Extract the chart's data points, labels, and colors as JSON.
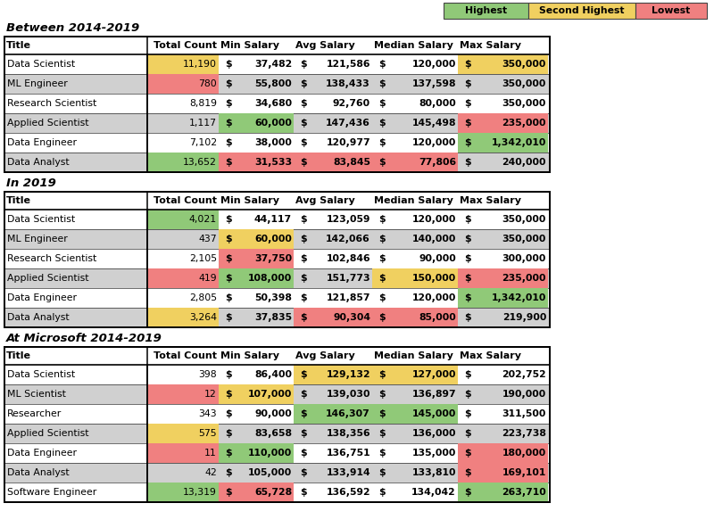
{
  "legend_colors": {
    "Highest": "#90c978",
    "Second Highest": "#f0d060",
    "Lowest": "#f08080"
  },
  "sections": [
    {
      "title": "Between 2014-2019",
      "rows": [
        {
          "title": "Data Scientist",
          "total_count": "11,190",
          "min_val": "37,482",
          "avg_val": "121,586",
          "med_val": "120,000",
          "max_val": "350,000",
          "colors": [
            "#f0d060",
            "W",
            "W",
            "W",
            "W",
            "W",
            "W",
            "#f0d060",
            "#f0d060"
          ]
        },
        {
          "title": "ML Engineer",
          "total_count": "780",
          "min_val": "55,800",
          "avg_val": "138,433",
          "med_val": "137,598",
          "max_val": "350,000",
          "colors": [
            "#f08080",
            "W",
            "W",
            "W",
            "W",
            "W",
            "W",
            "W",
            "W"
          ]
        },
        {
          "title": "Research Scientist",
          "total_count": "8,819",
          "min_val": "34,680",
          "avg_val": "92,760",
          "med_val": "80,000",
          "max_val": "350,000",
          "colors": [
            "W",
            "W",
            "W",
            "W",
            "W",
            "W",
            "W",
            "W",
            "W"
          ]
        },
        {
          "title": "Applied Scientist",
          "total_count": "1,117",
          "min_val": "60,000",
          "avg_val": "147,436",
          "med_val": "145,498",
          "max_val": "235,000",
          "colors": [
            "W",
            "#90c978",
            "#90c978",
            "W",
            "W",
            "W",
            "W",
            "#f08080",
            "#f08080"
          ]
        },
        {
          "title": "Data Engineer",
          "total_count": "7,102",
          "min_val": "38,000",
          "avg_val": "120,977",
          "med_val": "120,000",
          "max_val": "1,342,010",
          "colors": [
            "W",
            "W",
            "W",
            "W",
            "W",
            "W",
            "W",
            "#90c978",
            "#90c978"
          ]
        },
        {
          "title": "Data Analyst",
          "total_count": "13,652",
          "min_val": "31,533",
          "avg_val": "83,845",
          "med_val": "77,806",
          "max_val": "240,000",
          "colors": [
            "#90c978",
            "#f08080",
            "#f08080",
            "#f08080",
            "#f08080",
            "#f08080",
            "#f08080",
            "W",
            "W"
          ]
        }
      ]
    },
    {
      "title": "In 2019",
      "rows": [
        {
          "title": "Data Scientist",
          "total_count": "4,021",
          "min_val": "44,117",
          "avg_val": "123,059",
          "med_val": "120,000",
          "max_val": "350,000",
          "colors": [
            "#90c978",
            "W",
            "W",
            "W",
            "W",
            "W",
            "W",
            "W",
            "W"
          ]
        },
        {
          "title": "ML Engineer",
          "total_count": "437",
          "min_val": "60,000",
          "avg_val": "142,066",
          "med_val": "140,000",
          "max_val": "350,000",
          "colors": [
            "W",
            "#f0d060",
            "#f0d060",
            "W",
            "W",
            "W",
            "W",
            "W",
            "W"
          ]
        },
        {
          "title": "Research Scientist",
          "total_count": "2,105",
          "min_val": "37,750",
          "avg_val": "102,846",
          "med_val": "90,000",
          "max_val": "300,000",
          "colors": [
            "W",
            "#f08080",
            "#f08080",
            "W",
            "W",
            "W",
            "W",
            "W",
            "W"
          ]
        },
        {
          "title": "Applied Scientist",
          "total_count": "419",
          "min_val": "108,000",
          "avg_val": "151,773",
          "med_val": "150,000",
          "max_val": "235,000",
          "colors": [
            "#f08080",
            "#90c978",
            "#90c978",
            "W",
            "W",
            "#f0d060",
            "#f0d060",
            "#f08080",
            "#f08080"
          ]
        },
        {
          "title": "Data Engineer",
          "total_count": "2,805",
          "min_val": "50,398",
          "avg_val": "121,857",
          "med_val": "120,000",
          "max_val": "1,342,010",
          "colors": [
            "W",
            "W",
            "W",
            "W",
            "W",
            "W",
            "W",
            "#90c978",
            "#90c978"
          ]
        },
        {
          "title": "Data Analyst",
          "total_count": "3,264",
          "min_val": "37,835",
          "avg_val": "90,304",
          "med_val": "85,000",
          "max_val": "219,900",
          "colors": [
            "#f0d060",
            "W",
            "W",
            "#f08080",
            "#f08080",
            "#f08080",
            "#f08080",
            "W",
            "W"
          ]
        }
      ]
    },
    {
      "title": "At Microsoft 2014-2019",
      "rows": [
        {
          "title": "Data Scientist",
          "total_count": "398",
          "min_val": "86,400",
          "avg_val": "129,132",
          "med_val": "127,000",
          "max_val": "202,752",
          "colors": [
            "W",
            "W",
            "W",
            "#f0d060",
            "#f0d060",
            "#f0d060",
            "#f0d060",
            "W",
            "W"
          ]
        },
        {
          "title": "ML Scientist",
          "total_count": "12",
          "min_val": "107,000",
          "avg_val": "139,030",
          "med_val": "136,897",
          "max_val": "190,000",
          "colors": [
            "#f08080",
            "#f0d060",
            "#f0d060",
            "W",
            "W",
            "W",
            "W",
            "W",
            "W"
          ]
        },
        {
          "title": "Researcher",
          "total_count": "343",
          "min_val": "90,000",
          "avg_val": "146,307",
          "med_val": "145,000",
          "max_val": "311,500",
          "colors": [
            "W",
            "W",
            "W",
            "#90c978",
            "#90c978",
            "#90c978",
            "#90c978",
            "W",
            "W"
          ]
        },
        {
          "title": "Applied Scientist",
          "total_count": "575",
          "min_val": "83,658",
          "avg_val": "138,356",
          "med_val": "136,000",
          "max_val": "223,738",
          "colors": [
            "#f0d060",
            "W",
            "W",
            "W",
            "W",
            "W",
            "W",
            "W",
            "W"
          ]
        },
        {
          "title": "Data Engineer",
          "total_count": "11",
          "min_val": "110,000",
          "avg_val": "136,751",
          "med_val": "135,000",
          "max_val": "180,000",
          "colors": [
            "#f08080",
            "#90c978",
            "#90c978",
            "W",
            "W",
            "W",
            "W",
            "#f08080",
            "#f08080"
          ]
        },
        {
          "title": "Data Analyst",
          "total_count": "42",
          "min_val": "105,000",
          "avg_val": "133,914",
          "med_val": "133,810",
          "max_val": "169,101",
          "colors": [
            "W",
            "W",
            "W",
            "W",
            "W",
            "W",
            "W",
            "#f08080",
            "#f08080"
          ]
        },
        {
          "title": "Software Engineer",
          "total_count": "13,319",
          "min_val": "65,728",
          "avg_val": "136,592",
          "med_val": "134,042",
          "max_val": "263,710",
          "colors": [
            "#90c978",
            "#f08080",
            "#f08080",
            "W",
            "W",
            "W",
            "W",
            "#90c978",
            "#90c978"
          ]
        }
      ]
    }
  ]
}
